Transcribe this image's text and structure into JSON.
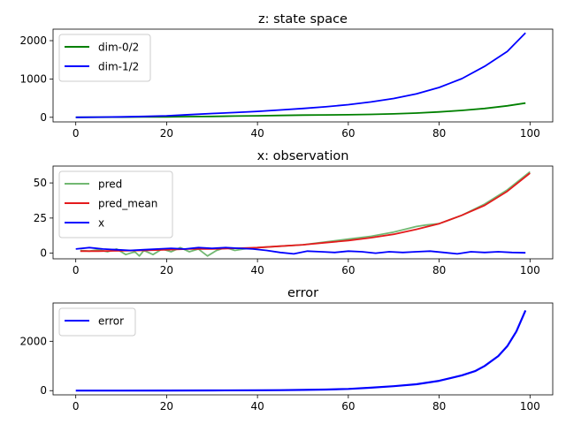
{
  "chart_data": [
    {
      "type": "line",
      "title": "z: state space",
      "xlabel": "",
      "ylabel": "",
      "xlim": [
        -5,
        105
      ],
      "ylim": [
        -120,
        2300
      ],
      "xticks": [
        0,
        20,
        40,
        60,
        80,
        100
      ],
      "yticks": [
        0,
        1000,
        2000
      ],
      "legend_position": "upper-left",
      "series": [
        {
          "name": "dim-0/2",
          "color": "#008000",
          "x": [
            0,
            5,
            10,
            15,
            20,
            25,
            30,
            35,
            40,
            45,
            50,
            55,
            60,
            65,
            70,
            75,
            80,
            85,
            90,
            95,
            99
          ],
          "values": [
            0,
            2,
            5,
            8,
            12,
            18,
            24,
            32,
            40,
            48,
            57,
            62,
            66,
            75,
            90,
            110,
            140,
            180,
            230,
            300,
            370
          ]
        },
        {
          "name": "dim-1/2",
          "color": "#0000ff",
          "x": [
            0,
            5,
            10,
            15,
            20,
            25,
            30,
            35,
            40,
            45,
            50,
            55,
            60,
            65,
            70,
            75,
            80,
            85,
            90,
            95,
            99
          ],
          "values": [
            0,
            5,
            12,
            22,
            40,
            70,
            100,
            125,
            155,
            190,
            230,
            275,
            330,
            400,
            490,
            610,
            780,
            1010,
            1330,
            1720,
            2200
          ]
        }
      ]
    },
    {
      "type": "line",
      "title": "x: observation",
      "xlabel": "",
      "ylabel": "",
      "xlim": [
        -5,
        105
      ],
      "ylim": [
        -4,
        62
      ],
      "xticks": [
        0,
        20,
        40,
        60,
        80,
        100
      ],
      "yticks": [
        0,
        25,
        50
      ],
      "legend_position": "upper-left",
      "series": [
        {
          "name": "pred",
          "color": "#72b872",
          "x": [
            1,
            3,
            5,
            7,
            9,
            11,
            13,
            14,
            15,
            17,
            19,
            21,
            23,
            25,
            27,
            29,
            31,
            33,
            35,
            37,
            40,
            45,
            50,
            55,
            60,
            65,
            70,
            75,
            77,
            80,
            85,
            90,
            95,
            100
          ],
          "values": [
            2,
            1.5,
            2.5,
            1,
            3,
            -1,
            1,
            -2,
            2,
            -1,
            3,
            1,
            4,
            1,
            3,
            -2,
            2,
            4,
            2,
            3,
            4,
            5,
            6,
            8,
            10,
            12,
            15,
            19,
            20,
            21,
            27,
            35,
            45,
            58
          ]
        },
        {
          "name": "pred_mean",
          "color": "#e41a1c",
          "x": [
            1,
            5,
            10,
            15,
            20,
            25,
            30,
            35,
            40,
            45,
            50,
            55,
            60,
            65,
            70,
            75,
            80,
            85,
            90,
            95,
            100
          ],
          "values": [
            1.5,
            1.5,
            1.8,
            2,
            2.5,
            3,
            3,
            3.5,
            4,
            5,
            6,
            7.5,
            9,
            11,
            13.5,
            17,
            21,
            27,
            34,
            44,
            57
          ]
        },
        {
          "name": "x",
          "color": "#0000ff",
          "x": [
            0,
            3,
            6,
            9,
            12,
            15,
            18,
            21,
            24,
            27,
            30,
            33,
            36,
            39,
            42,
            45,
            48,
            51,
            54,
            57,
            60,
            63,
            66,
            69,
            72,
            75,
            78,
            81,
            84,
            87,
            90,
            93,
            96,
            99
          ],
          "values": [
            3,
            4,
            3,
            2.5,
            2,
            2.5,
            3,
            3.5,
            3,
            4,
            3.5,
            4,
            3.5,
            3,
            2,
            0.5,
            -0.5,
            1.5,
            1,
            0.5,
            1.5,
            1,
            0,
            1,
            0.5,
            1,
            1.5,
            0.5,
            -0.5,
            1,
            0.5,
            1,
            0.5,
            0.3
          ]
        }
      ]
    },
    {
      "type": "line",
      "title": "error",
      "xlabel": "",
      "ylabel": "",
      "xlim": [
        -5,
        105
      ],
      "ylim": [
        -170,
        3550
      ],
      "xticks": [
        0,
        20,
        40,
        60,
        80,
        100
      ],
      "yticks": [
        0,
        2000
      ],
      "legend_position": "upper-left",
      "series": [
        {
          "name": "error",
          "color": "#0000ff",
          "x": [
            0,
            10,
            20,
            30,
            40,
            45,
            50,
            55,
            60,
            65,
            70,
            75,
            80,
            85,
            88,
            90,
            93,
            95,
            97,
            99
          ],
          "values": [
            0,
            2,
            5,
            10,
            15,
            20,
            30,
            45,
            70,
            120,
            180,
            260,
            400,
            620,
            800,
            1000,
            1400,
            1800,
            2400,
            3250
          ]
        }
      ]
    }
  ]
}
